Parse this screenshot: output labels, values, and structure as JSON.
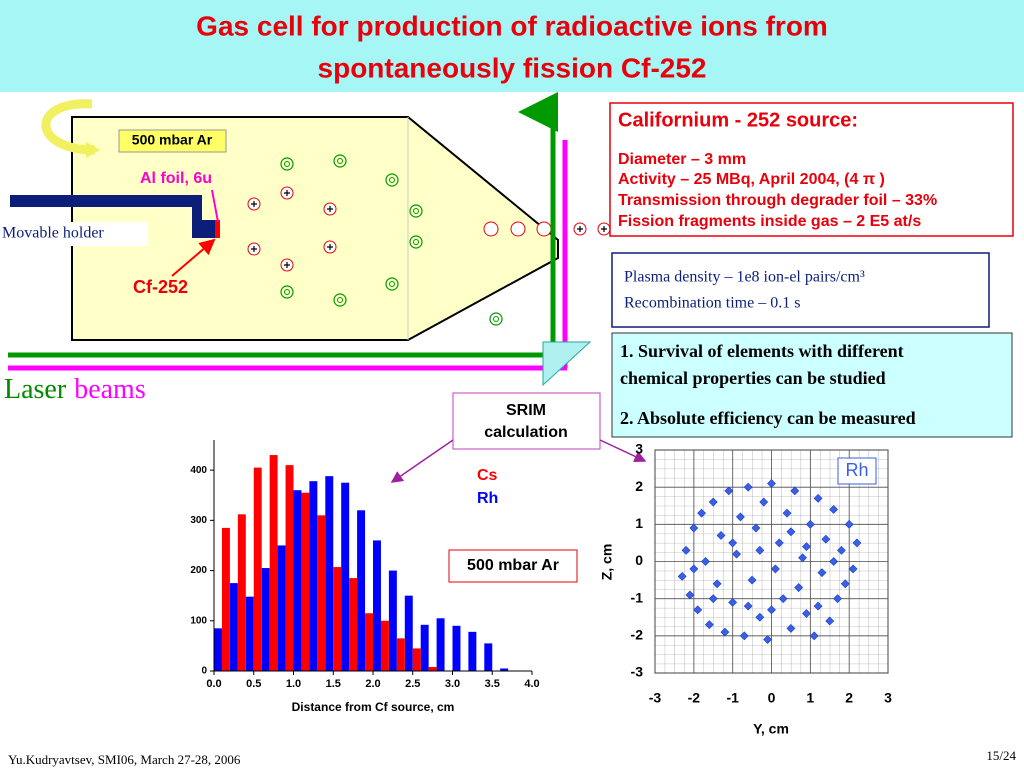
{
  "header": {
    "title": [
      "Gas cell for production of radioactive ions from",
      "spontaneously fission Cf-252"
    ]
  },
  "diagram": {
    "pressure": "500 mbar Ar",
    "foil": "Al foil, 6u",
    "holder": "Movable holder",
    "source": "Cf-252",
    "laser": "Laser",
    "beams": "beams"
  },
  "source_box": {
    "title": "Californium - 252 source:",
    "lines": [
      "Diameter – 3 mm",
      "Activity – 25 MBq, April 2004, (4 π )",
      "Transmission through degrader foil – 33%",
      "Fission fragments inside gas – 2 E5 at/s"
    ]
  },
  "plasma_box": {
    "lines": [
      "Plasma density – 1e8 ion-el pairs/cm³",
      "Recombination time – 0.1 s"
    ]
  },
  "conclusions": {
    "items": [
      [
        "1. Survival of elements with different",
        "chemical properties can be studied"
      ],
      [
        "2. Absolute efficiency can be measured"
      ]
    ]
  },
  "srim": [
    "SRIM",
    "calculation"
  ],
  "charts": [
    {
      "type": "bar",
      "xlabel": "Distance from Cf source, cm",
      "annotation": "500 mbar Ar",
      "x": [
        0,
        0.2,
        0.4,
        0.6,
        0.8,
        1.0,
        1.2,
        1.4,
        1.6,
        1.8,
        2.0,
        2.2,
        2.4,
        2.6,
        2.8,
        3.0,
        3.2,
        3.4,
        3.6,
        3.8
      ],
      "series": [
        {
          "name": "Cs",
          "color": "#ff0000",
          "values": [
            285,
            312,
            405,
            430,
            410,
            355,
            310,
            207,
            185,
            115,
            100,
            65,
            45,
            8,
            null,
            null,
            null,
            null,
            null,
            null
          ]
        },
        {
          "name": "Rh",
          "color": "#0000ff",
          "values": [
            85,
            175,
            148,
            205,
            250,
            360,
            378,
            388,
            375,
            320,
            260,
            200,
            150,
            92,
            105,
            90,
            78,
            55,
            5,
            null
          ]
        }
      ],
      "xlim": [
        0,
        4
      ],
      "ylim": [
        0,
        460
      ],
      "xticks": [
        {
          "value": 0,
          "label": "0.0"
        },
        0.5,
        {
          "value": 1,
          "label": "1.0"
        },
        1.5,
        {
          "value": 2,
          "label": "2.0"
        },
        2.5,
        {
          "value": 3,
          "label": "3.0"
        },
        3.5,
        {
          "value": 4,
          "label": "4.0"
        }
      ],
      "yticks": [
        0,
        100,
        200,
        300,
        400
      ]
    },
    {
      "type": "scatter",
      "xlabel": "Y, cm",
      "ylabel": "Z, cm",
      "legend": "Rh",
      "color": "#3a5fe6",
      "grid": true,
      "x": [
        -2.3,
        -2.2,
        -2.1,
        -2.0,
        -1.9,
        -1.8,
        -1.7,
        -1.6,
        -1.5,
        -1.4,
        -1.3,
        -1.2,
        -1.1,
        -1.0,
        -0.9,
        -0.8,
        -0.7,
        -0.6,
        -0.5,
        -0.4,
        -0.3,
        -0.2,
        -0.1,
        0.0,
        0.1,
        0.2,
        0.3,
        0.4,
        0.5,
        0.6,
        0.7,
        0.8,
        0.9,
        1.0,
        1.1,
        1.2,
        1.3,
        1.4,
        1.5,
        1.6,
        1.7,
        1.8,
        1.9,
        2.0,
        2.1,
        2.2,
        -1.0,
        0.5,
        -0.6,
        1.2,
        -1.5,
        0.0,
        -0.3,
        1.6,
        -2.0,
        0.9
      ],
      "values": [
        -0.4,
        0.3,
        -0.9,
        0.9,
        -1.3,
        1.3,
        0.0,
        -1.7,
        1.6,
        -0.6,
        0.7,
        -1.9,
        1.9,
        -1.1,
        0.2,
        1.2,
        -2.0,
        2.0,
        -0.5,
        0.9,
        -1.5,
        1.6,
        -2.1,
        2.1,
        -0.2,
        0.5,
        -1.0,
        1.3,
        -1.8,
        1.9,
        -0.7,
        0.1,
        -1.4,
        1.0,
        -2.0,
        1.7,
        -0.3,
        0.6,
        -1.6,
        1.4,
        -1.0,
        0.3,
        -0.6,
        1.0,
        -0.2,
        0.5,
        0.5,
        0.8,
        -1.2,
        -1.2,
        -1.0,
        -1.3,
        0.3,
        0.0,
        -0.2,
        0.4
      ],
      "xlim": [
        -3,
        3
      ],
      "ylim": [
        -3,
        3
      ],
      "xticks": [
        -3,
        -2,
        -1,
        0,
        1,
        2,
        3
      ],
      "yticks": [
        -3,
        -2,
        -1,
        0,
        1,
        2,
        3
      ]
    }
  ],
  "footer": {
    "left": "Yu.Kudryavtsev, SMI06, March 27-28, 2006",
    "right": "15/24"
  }
}
